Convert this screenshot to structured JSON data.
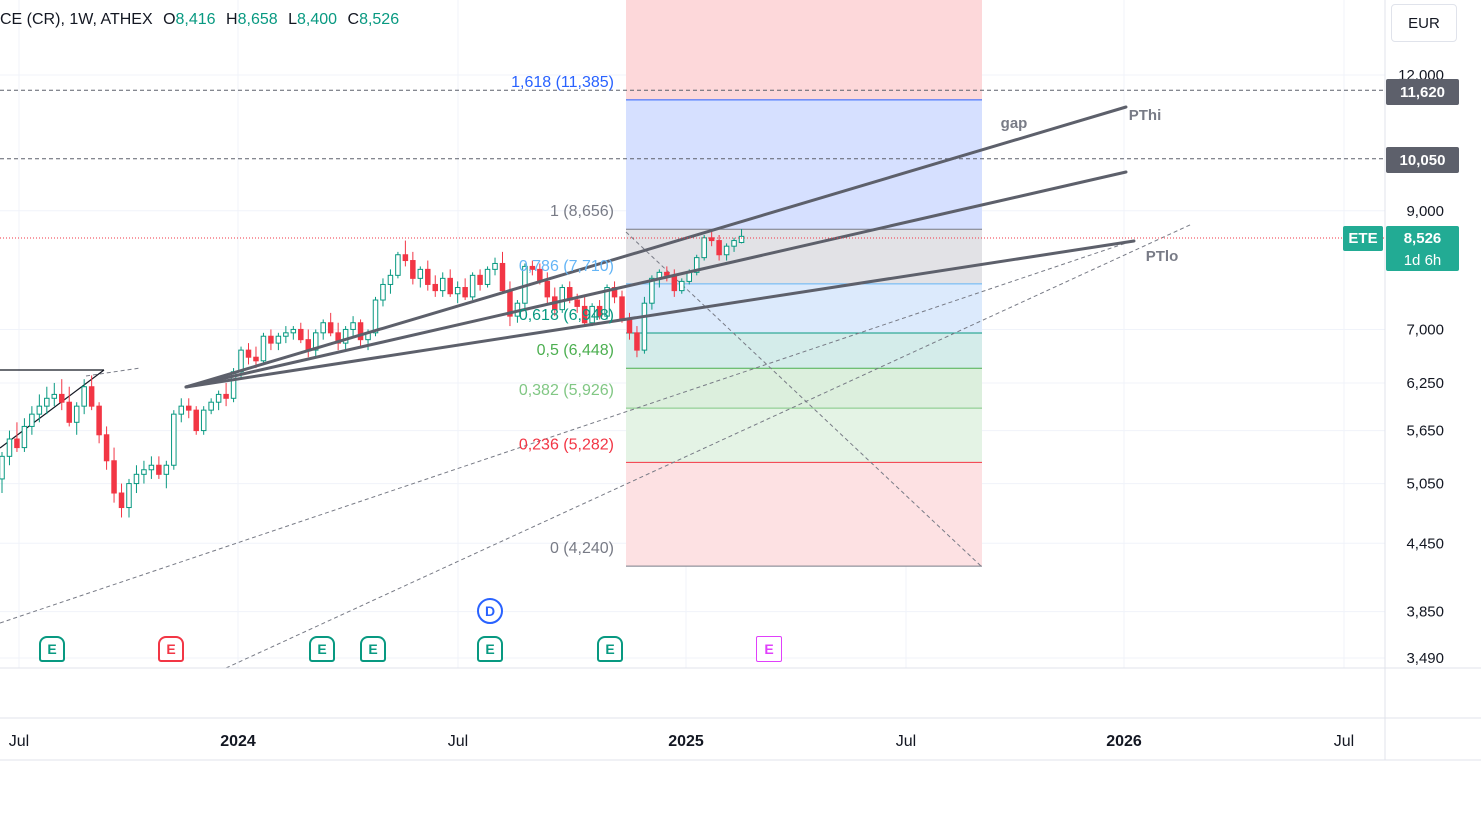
{
  "legend": {
    "symbol": "CE (CR)",
    "interval": "1W",
    "exchange": "ATHEX",
    "open_label": "O",
    "open": "8,416",
    "high_label": "H",
    "high": "8,658",
    "low_label": "L",
    "low": "8,400",
    "close_label": "C",
    "close": "8,526"
  },
  "currency": "EUR",
  "price_tags": {
    "level_high": "11,620",
    "level_mid": "10,050",
    "ticker": "ETE",
    "last_price": "8,526",
    "countdown": "1d 6h"
  },
  "colors": {
    "up": "#089981",
    "down": "#f23645",
    "trendline": "#5d606b",
    "fib_high_zone": "#f7525f",
    "fib_extension": "#2962ff",
    "axis_text": "#131722"
  },
  "chart_data": {
    "type": "candlestick",
    "interval": "1W",
    "y_scale": "log",
    "y_ticks": [
      "12,000",
      "9,000",
      "7,000",
      "6,250",
      "5,650",
      "5,050",
      "4,450",
      "3,850",
      "3,490"
    ],
    "x_ticks": [
      "Jul",
      "2024",
      "Jul",
      "2025",
      "Jul",
      "2026",
      "Jul"
    ],
    "horizontal_levels": [
      11.62,
      10.05
    ],
    "last_price": 8.526,
    "fib_retracement": {
      "levels": [
        {
          "label": "1,618 (11,385)",
          "value": 11.385,
          "color": "#2962ff"
        },
        {
          "label": "1 (8,656)",
          "value": 8.656,
          "color": "#787b86"
        },
        {
          "label": "0,786 (7,710)",
          "value": 7.71,
          "color": "#64b5f6"
        },
        {
          "label": "0,618 (6,948)",
          "value": 6.948,
          "color": "#089981"
        },
        {
          "label": "0,5 (6,448)",
          "value": 6.448,
          "color": "#4caf50"
        },
        {
          "label": "0,382 (5,926)",
          "value": 5.926,
          "color": "#81c784"
        },
        {
          "label": "0,236 (5,282)",
          "value": 5.282,
          "color": "#f23645"
        },
        {
          "label": "0 (4,240)",
          "value": 4.24,
          "color": "#787b86"
        }
      ]
    },
    "annotations": [
      "gap",
      "PThi",
      "PTlo"
    ],
    "events": [
      {
        "label": "E",
        "kind": "earnings-up",
        "x": "2023-07"
      },
      {
        "label": "E",
        "kind": "earnings-down",
        "x": "2023-12"
      },
      {
        "label": "E",
        "kind": "earnings-up",
        "x": "2024-04"
      },
      {
        "label": "E",
        "kind": "earnings-up",
        "x": "2024-05"
      },
      {
        "label": "D",
        "kind": "dividend",
        "x": "2024-08"
      },
      {
        "label": "E",
        "kind": "earnings-up",
        "x": "2024-08"
      },
      {
        "label": "E",
        "kind": "earnings-up",
        "x": "2024-11"
      },
      {
        "label": "E",
        "kind": "earnings-upcoming",
        "x": "2025-03"
      }
    ],
    "candles": [
      {
        "o": 5.1,
        "h": 5.4,
        "l": 4.95,
        "c": 5.35
      },
      {
        "o": 5.35,
        "h": 5.65,
        "l": 5.25,
        "c": 5.55
      },
      {
        "o": 5.55,
        "h": 5.75,
        "l": 5.4,
        "c": 5.45
      },
      {
        "o": 5.45,
        "h": 5.8,
        "l": 5.4,
        "c": 5.7
      },
      {
        "o": 5.7,
        "h": 5.95,
        "l": 5.6,
        "c": 5.85
      },
      {
        "o": 5.85,
        "h": 6.1,
        "l": 5.75,
        "c": 5.95
      },
      {
        "o": 5.95,
        "h": 6.2,
        "l": 5.85,
        "c": 6.05
      },
      {
        "o": 6.05,
        "h": 6.25,
        "l": 5.95,
        "c": 6.1
      },
      {
        "o": 6.1,
        "h": 6.3,
        "l": 5.9,
        "c": 6.0
      },
      {
        "o": 6.0,
        "h": 6.2,
        "l": 5.7,
        "c": 5.75
      },
      {
        "o": 5.75,
        "h": 6.0,
        "l": 5.6,
        "c": 5.95
      },
      {
        "o": 5.95,
        "h": 6.3,
        "l": 5.85,
        "c": 6.2
      },
      {
        "o": 6.2,
        "h": 6.35,
        "l": 5.9,
        "c": 5.95
      },
      {
        "o": 5.95,
        "h": 6.0,
        "l": 5.5,
        "c": 5.6
      },
      {
        "o": 5.6,
        "h": 5.7,
        "l": 5.2,
        "c": 5.3
      },
      {
        "o": 5.3,
        "h": 5.45,
        "l": 4.85,
        "c": 4.95
      },
      {
        "o": 4.95,
        "h": 5.05,
        "l": 4.7,
        "c": 4.8
      },
      {
        "o": 4.8,
        "h": 5.1,
        "l": 4.7,
        "c": 5.05
      },
      {
        "o": 5.05,
        "h": 5.25,
        "l": 4.95,
        "c": 5.15
      },
      {
        "o": 5.15,
        "h": 5.3,
        "l": 5.05,
        "c": 5.2
      },
      {
        "o": 5.2,
        "h": 5.35,
        "l": 5.1,
        "c": 5.25
      },
      {
        "o": 5.25,
        "h": 5.35,
        "l": 5.1,
        "c": 5.15
      },
      {
        "o": 5.15,
        "h": 5.3,
        "l": 5.0,
        "c": 5.25
      },
      {
        "o": 5.25,
        "h": 5.9,
        "l": 5.2,
        "c": 5.85
      },
      {
        "o": 5.85,
        "h": 6.05,
        "l": 5.75,
        "c": 5.95
      },
      {
        "o": 5.95,
        "h": 6.05,
        "l": 5.8,
        "c": 5.9
      },
      {
        "o": 5.9,
        "h": 5.95,
        "l": 5.6,
        "c": 5.65
      },
      {
        "o": 5.65,
        "h": 5.95,
        "l": 5.6,
        "c": 5.9
      },
      {
        "o": 5.9,
        "h": 6.05,
        "l": 5.85,
        "c": 6.0
      },
      {
        "o": 6.0,
        "h": 6.15,
        "l": 5.9,
        "c": 6.1
      },
      {
        "o": 6.1,
        "h": 6.25,
        "l": 5.95,
        "c": 6.05
      },
      {
        "o": 6.05,
        "h": 6.45,
        "l": 6.0,
        "c": 6.4
      },
      {
        "o": 6.4,
        "h": 6.75,
        "l": 6.3,
        "c": 6.7
      },
      {
        "o": 6.7,
        "h": 6.8,
        "l": 6.5,
        "c": 6.6
      },
      {
        "o": 6.6,
        "h": 6.75,
        "l": 6.45,
        "c": 6.55
      },
      {
        "o": 6.55,
        "h": 6.95,
        "l": 6.5,
        "c": 6.9
      },
      {
        "o": 6.9,
        "h": 7.0,
        "l": 6.7,
        "c": 6.8
      },
      {
        "o": 6.8,
        "h": 6.95,
        "l": 6.7,
        "c": 6.9
      },
      {
        "o": 6.9,
        "h": 7.05,
        "l": 6.8,
        "c": 6.95
      },
      {
        "o": 6.95,
        "h": 7.05,
        "l": 6.85,
        "c": 7.0
      },
      {
        "o": 7.0,
        "h": 7.1,
        "l": 6.8,
        "c": 6.85
      },
      {
        "o": 6.85,
        "h": 7.0,
        "l": 6.6,
        "c": 6.7
      },
      {
        "o": 6.7,
        "h": 7.0,
        "l": 6.6,
        "c": 6.95
      },
      {
        "o": 6.95,
        "h": 7.15,
        "l": 6.85,
        "c": 7.1
      },
      {
        "o": 7.1,
        "h": 7.25,
        "l": 6.9,
        "c": 6.95
      },
      {
        "o": 6.95,
        "h": 7.1,
        "l": 6.7,
        "c": 6.8
      },
      {
        "o": 6.8,
        "h": 7.05,
        "l": 6.7,
        "c": 7.0
      },
      {
        "o": 7.0,
        "h": 7.2,
        "l": 6.9,
        "c": 7.1
      },
      {
        "o": 7.1,
        "h": 7.15,
        "l": 6.75,
        "c": 6.85
      },
      {
        "o": 6.85,
        "h": 7.0,
        "l": 6.7,
        "c": 6.95
      },
      {
        "o": 6.95,
        "h": 7.5,
        "l": 6.9,
        "c": 7.45
      },
      {
        "o": 7.45,
        "h": 7.8,
        "l": 7.35,
        "c": 7.7
      },
      {
        "o": 7.7,
        "h": 7.95,
        "l": 7.55,
        "c": 7.85
      },
      {
        "o": 7.85,
        "h": 8.25,
        "l": 7.8,
        "c": 8.2
      },
      {
        "o": 8.2,
        "h": 8.45,
        "l": 8.0,
        "c": 8.1
      },
      {
        "o": 8.1,
        "h": 8.25,
        "l": 7.7,
        "c": 7.8
      },
      {
        "o": 7.8,
        "h": 8.0,
        "l": 7.65,
        "c": 7.95
      },
      {
        "o": 7.95,
        "h": 8.1,
        "l": 7.6,
        "c": 7.7
      },
      {
        "o": 7.7,
        "h": 7.85,
        "l": 7.5,
        "c": 7.6
      },
      {
        "o": 7.6,
        "h": 7.9,
        "l": 7.5,
        "c": 7.8
      },
      {
        "o": 7.8,
        "h": 7.95,
        "l": 7.5,
        "c": 7.55
      },
      {
        "o": 7.55,
        "h": 7.75,
        "l": 7.4,
        "c": 7.65
      },
      {
        "o": 7.65,
        "h": 7.8,
        "l": 7.45,
        "c": 7.5
      },
      {
        "o": 7.5,
        "h": 7.9,
        "l": 7.45,
        "c": 7.85
      },
      {
        "o": 7.85,
        "h": 7.95,
        "l": 7.6,
        "c": 7.7
      },
      {
        "o": 7.7,
        "h": 8.0,
        "l": 7.65,
        "c": 7.95
      },
      {
        "o": 7.95,
        "h": 8.15,
        "l": 7.85,
        "c": 8.05
      },
      {
        "o": 8.05,
        "h": 8.25,
        "l": 7.55,
        "c": 7.6
      },
      {
        "o": 7.6,
        "h": 7.75,
        "l": 7.05,
        "c": 7.2
      },
      {
        "o": 7.2,
        "h": 7.45,
        "l": 7.1,
        "c": 7.4
      },
      {
        "o": 7.4,
        "h": 8.05,
        "l": 7.3,
        "c": 8.0
      },
      {
        "o": 8.0,
        "h": 8.1,
        "l": 7.85,
        "c": 7.95
      },
      {
        "o": 7.95,
        "h": 8.05,
        "l": 7.7,
        "c": 7.75
      },
      {
        "o": 7.75,
        "h": 7.9,
        "l": 7.4,
        "c": 7.5
      },
      {
        "o": 7.5,
        "h": 7.65,
        "l": 7.2,
        "c": 7.3
      },
      {
        "o": 7.3,
        "h": 7.7,
        "l": 7.25,
        "c": 7.65
      },
      {
        "o": 7.65,
        "h": 7.75,
        "l": 7.4,
        "c": 7.45
      },
      {
        "o": 7.45,
        "h": 7.55,
        "l": 7.25,
        "c": 7.35
      },
      {
        "o": 7.35,
        "h": 7.5,
        "l": 7.05,
        "c": 7.1
      },
      {
        "o": 7.1,
        "h": 7.4,
        "l": 7.05,
        "c": 7.35
      },
      {
        "o": 7.35,
        "h": 7.45,
        "l": 7.15,
        "c": 7.2
      },
      {
        "o": 7.2,
        "h": 7.7,
        "l": 7.15,
        "c": 7.65
      },
      {
        "o": 7.65,
        "h": 7.75,
        "l": 7.4,
        "c": 7.5
      },
      {
        "o": 7.5,
        "h": 7.6,
        "l": 7.1,
        "c": 7.15
      },
      {
        "o": 7.15,
        "h": 7.25,
        "l": 6.85,
        "c": 6.95
      },
      {
        "o": 6.95,
        "h": 7.05,
        "l": 6.6,
        "c": 6.7
      },
      {
        "o": 6.7,
        "h": 7.5,
        "l": 6.65,
        "c": 7.4
      },
      {
        "o": 7.4,
        "h": 7.85,
        "l": 7.3,
        "c": 7.8
      },
      {
        "o": 7.8,
        "h": 7.95,
        "l": 7.65,
        "c": 7.9
      },
      {
        "o": 7.9,
        "h": 8.0,
        "l": 7.75,
        "c": 7.85
      },
      {
        "o": 7.85,
        "h": 7.95,
        "l": 7.5,
        "c": 7.6
      },
      {
        "o": 7.6,
        "h": 7.8,
        "l": 7.55,
        "c": 7.75
      },
      {
        "o": 7.75,
        "h": 7.95,
        "l": 7.7,
        "c": 7.9
      },
      {
        "o": 7.9,
        "h": 8.2,
        "l": 7.85,
        "c": 8.15
      },
      {
        "o": 8.15,
        "h": 8.55,
        "l": 8.1,
        "c": 8.5
      },
      {
        "o": 8.5,
        "h": 8.62,
        "l": 8.35,
        "c": 8.45
      },
      {
        "o": 8.45,
        "h": 8.55,
        "l": 8.1,
        "c": 8.2
      },
      {
        "o": 8.2,
        "h": 8.4,
        "l": 8.1,
        "c": 8.35
      },
      {
        "o": 8.35,
        "h": 8.5,
        "l": 8.25,
        "c": 8.45
      },
      {
        "o": 8.416,
        "h": 8.658,
        "l": 8.4,
        "c": 8.526
      }
    ]
  }
}
